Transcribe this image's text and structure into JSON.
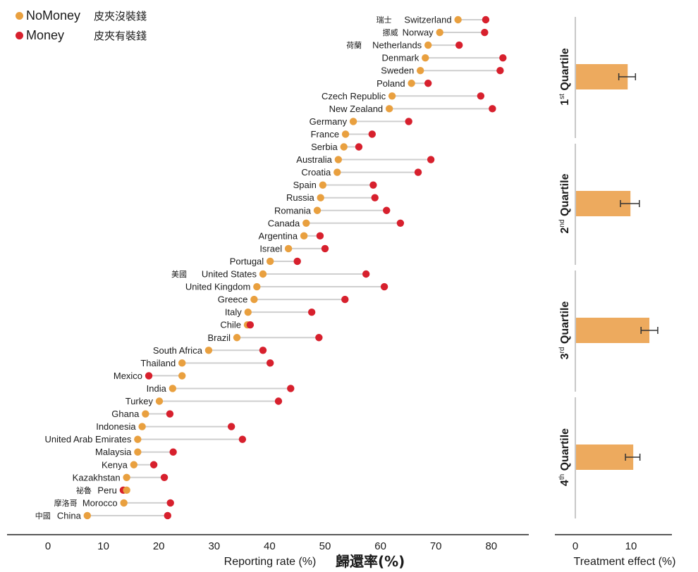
{
  "legend": {
    "items": [
      {
        "name": "NoMoney",
        "zh": "皮夾沒裝錢",
        "color": "#E9A03F"
      },
      {
        "name": "Money",
        "zh": "皮夾有裝錢",
        "color": "#D7202D"
      }
    ]
  },
  "chart_data": [
    {
      "type": "dumbbell",
      "title": "",
      "xlabel": "Reporting rate (%)",
      "xlabel_zh": "歸還率(%)",
      "ylabel": "",
      "xlim": [
        -7,
        87
      ],
      "xticks": [
        0,
        10,
        20,
        30,
        40,
        50,
        60,
        70,
        80
      ],
      "grid": false,
      "legend_position": "top-left",
      "series_names": [
        "NoMoney",
        "Money"
      ],
      "categories": [
        {
          "country": "Switzerland",
          "zh": "瑞士",
          "no_money": 74.0,
          "money": 79.0
        },
        {
          "country": "Norway",
          "zh": "挪威",
          "no_money": 70.7,
          "money": 78.8
        },
        {
          "country": "Netherlands",
          "zh": "荷蘭",
          "no_money": 68.6,
          "money": 74.2
        },
        {
          "country": "Denmark",
          "zh": "",
          "no_money": 68.1,
          "money": 82.1
        },
        {
          "country": "Sweden",
          "zh": "",
          "no_money": 67.2,
          "money": 81.6
        },
        {
          "country": "Poland",
          "zh": "",
          "no_money": 65.6,
          "money": 68.6
        },
        {
          "country": "Czech Republic",
          "zh": "",
          "no_money": 62.1,
          "money": 78.1
        },
        {
          "country": "New Zealand",
          "zh": "",
          "no_money": 61.6,
          "money": 80.2
        },
        {
          "country": "Germany",
          "zh": "",
          "no_money": 55.1,
          "money": 65.1
        },
        {
          "country": "France",
          "zh": "",
          "no_money": 53.7,
          "money": 58.5
        },
        {
          "country": "Serbia",
          "zh": "",
          "no_money": 53.4,
          "money": 56.1
        },
        {
          "country": "Australia",
          "zh": "",
          "no_money": 52.4,
          "money": 69.1
        },
        {
          "country": "Croatia",
          "zh": "",
          "no_money": 52.2,
          "money": 66.8
        },
        {
          "country": "Spain",
          "zh": "",
          "no_money": 49.6,
          "money": 58.7
        },
        {
          "country": "Russia",
          "zh": "",
          "no_money": 49.2,
          "money": 59.0
        },
        {
          "country": "Romania",
          "zh": "",
          "no_money": 48.6,
          "money": 61.1
        },
        {
          "country": "Canada",
          "zh": "",
          "no_money": 46.6,
          "money": 63.6
        },
        {
          "country": "Argentina",
          "zh": "",
          "no_money": 46.2,
          "money": 49.1
        },
        {
          "country": "Israel",
          "zh": "",
          "no_money": 43.4,
          "money": 50.0
        },
        {
          "country": "Portugal",
          "zh": "",
          "no_money": 40.1,
          "money": 45.0
        },
        {
          "country": "United States",
          "zh": "美國",
          "no_money": 38.8,
          "money": 57.4
        },
        {
          "country": "United Kingdom",
          "zh": "",
          "no_money": 37.7,
          "money": 60.7
        },
        {
          "country": "Greece",
          "zh": "",
          "no_money": 37.2,
          "money": 53.6
        },
        {
          "country": "Italy",
          "zh": "",
          "no_money": 36.1,
          "money": 47.6
        },
        {
          "country": "Chile",
          "zh": "",
          "no_money": 36.0,
          "money": 36.5
        },
        {
          "country": "Brazil",
          "zh": "",
          "no_money": 34.1,
          "money": 48.9
        },
        {
          "country": "South Africa",
          "zh": "",
          "no_money": 29.0,
          "money": 38.8
        },
        {
          "country": "Thailand",
          "zh": "",
          "no_money": 24.2,
          "money": 40.1
        },
        {
          "country": "Mexico",
          "zh": "",
          "no_money": 24.2,
          "money": 18.2
        },
        {
          "country": "India",
          "zh": "",
          "no_money": 22.5,
          "money": 43.8
        },
        {
          "country": "Turkey",
          "zh": "",
          "no_money": 20.1,
          "money": 41.6
        },
        {
          "country": "Ghana",
          "zh": "",
          "no_money": 17.6,
          "money": 22.0
        },
        {
          "country": "Indonesia",
          "zh": "",
          "no_money": 17.0,
          "money": 33.1
        },
        {
          "country": "United Arab Emirates",
          "zh": "",
          "no_money": 16.2,
          "money": 35.1
        },
        {
          "country": "Malaysia",
          "zh": "",
          "no_money": 16.2,
          "money": 22.6
        },
        {
          "country": "Kenya",
          "zh": "",
          "no_money": 15.5,
          "money": 19.1
        },
        {
          "country": "Kazakhstan",
          "zh": "",
          "no_money": 14.2,
          "money": 21.0
        },
        {
          "country": "Peru",
          "zh": "祕魯",
          "no_money": 14.2,
          "money": 13.6
        },
        {
          "country": "Morocco",
          "zh": "摩洛哥",
          "no_money": 13.7,
          "money": 22.1
        },
        {
          "country": "China",
          "zh": "中國",
          "no_money": 7.1,
          "money": 21.6
        }
      ]
    },
    {
      "type": "bar",
      "orientation": "horizontal",
      "xlabel": "Treatment effect (%)",
      "xlim": [
        -4,
        17
      ],
      "xticks": [
        0,
        10
      ],
      "grid": false,
      "categories": [
        {
          "label": "1st Quartile",
          "num": "1",
          "sup": "st",
          "value": 9.4,
          "err_low": 7.8,
          "err_high": 10.8
        },
        {
          "label": "2nd Quartile",
          "num": "2",
          "sup": "nd",
          "value": 9.9,
          "err_low": 8.1,
          "err_high": 11.5
        },
        {
          "label": "3rd Quartile",
          "num": "3",
          "sup": "rd",
          "value": 13.3,
          "err_low": 11.8,
          "err_high": 14.8
        },
        {
          "label": "4th Quartile",
          "num": "4",
          "sup": "th",
          "value": 10.4,
          "err_low": 9.0,
          "err_high": 11.6
        }
      ],
      "bar_color": "#EDAA5E"
    }
  ]
}
